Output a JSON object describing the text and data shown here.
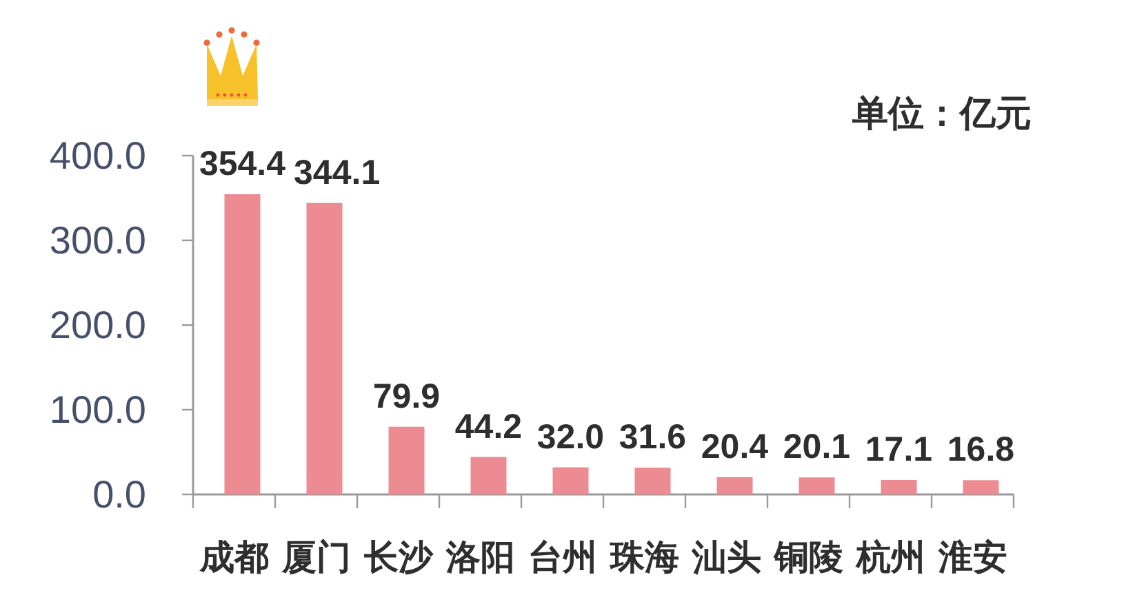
{
  "chart_data": {
    "type": "bar",
    "categories": [
      "成都",
      "厦门",
      "长沙",
      "洛阳",
      "台州",
      "珠海",
      "汕头",
      "铜陵",
      "杭州",
      "淮安"
    ],
    "values": [
      354.4,
      344.1,
      79.9,
      44.2,
      32.0,
      31.6,
      20.4,
      20.1,
      17.1,
      16.8
    ],
    "value_labels": [
      "354.4",
      "344.1",
      "79.9",
      "44.2",
      "32.0",
      "31.6",
      "20.4",
      "20.1",
      "17.1",
      "16.8"
    ],
    "color": "#ec8b91",
    "ylim": [
      0,
      400
    ],
    "yticks": [
      {
        "value": 0,
        "label": "0.0"
      },
      {
        "value": 100,
        "label": "100.0"
      },
      {
        "value": 200,
        "label": "200.0"
      },
      {
        "value": 300,
        "label": "300.0"
      },
      {
        "value": 400,
        "label": "400.0"
      }
    ],
    "annotations": [
      "单位：亿元"
    ]
  }
}
